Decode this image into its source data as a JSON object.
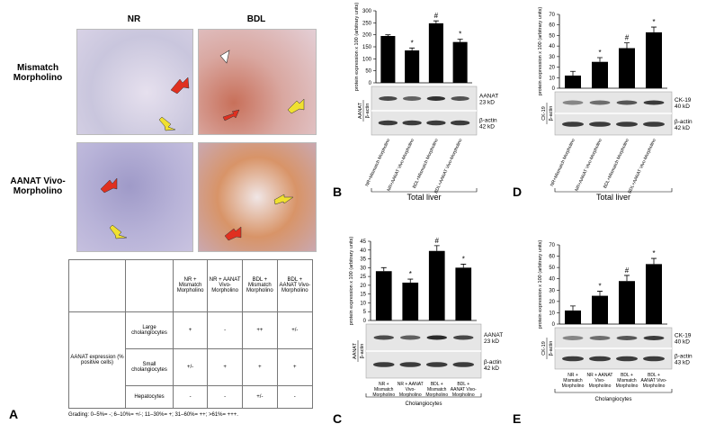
{
  "panel_a": {
    "letter": "A",
    "columns": [
      "NR",
      "BDL"
    ],
    "rows": [
      "Mismatch Morpholino",
      "AANAT Vivo-Morpholino"
    ]
  },
  "table": {
    "headers": [
      "NR + Mismatch Morpholino",
      "NR + AANAT Vivo-Morpholino",
      "BDL + Mismatch Morpholino",
      "BDL + AANAT Vivo-Morpholino"
    ],
    "row_group": "AANAT expression (% positive cells)",
    "rows": [
      [
        "Large cholangiocytes",
        "+",
        "-",
        "++",
        "+/-"
      ],
      [
        "Small cholangiocytes",
        "+/-",
        "+",
        "+",
        "+"
      ],
      [
        "Hepatocytes",
        "-",
        "-",
        "+/-",
        "-"
      ]
    ],
    "note": "Grading: 0–5%= -; 6–10%= +/-; 11–30%= +; 31–60%= ++; >61%= +++."
  },
  "chart_data": [
    {
      "type": "bar",
      "letter": "B",
      "y_label": "protein expression x 100 (arbitrary units)",
      "ratio_label": [
        "AANAT",
        "β-actin"
      ],
      "categories": [
        "NR+Mismatch Morpholino",
        "NR+AANAT Vivo-Morpholino",
        "BDL+Mismatch Morpholino",
        "BDL+AANAT Vivo-Morpholino"
      ],
      "values": [
        195,
        135,
        248,
        170
      ],
      "errors": [
        5,
        10,
        10,
        12
      ],
      "color": "#000000",
      "annotations": [
        {
          "index": 1,
          "text": "*"
        },
        {
          "index": 2,
          "text": "#"
        },
        {
          "index": 3,
          "text": "*"
        }
      ],
      "ylim": [
        0,
        300
      ],
      "yticks": [
        0,
        50,
        100,
        150,
        200,
        250,
        300
      ],
      "blot_labels": [
        {
          "name": "AANAT",
          "size": "23 kD"
        },
        {
          "name": "β-actin",
          "size": "42 kD"
        }
      ],
      "group": "Total liver"
    },
    {
      "type": "bar",
      "letter": "C",
      "y_label": "protein expression x 100 (arbitrary units)",
      "ratio_label": [
        "AANAT",
        "β-actin"
      ],
      "categories": [
        "NR + Mismatch Morpholino",
        "NR + AANAT Vivo-Morpholino",
        "BDL + Mismatch Morpholino",
        "BDL + AANAT Vivo-Morpholino"
      ],
      "values": [
        28,
        21.5,
        39.5,
        30
      ],
      "errors": [
        2,
        2,
        3,
        2
      ],
      "color": "#000000",
      "annotations": [
        {
          "index": 1,
          "text": "*"
        },
        {
          "index": 2,
          "text": "#"
        },
        {
          "index": 3,
          "text": "*"
        }
      ],
      "ylim": [
        0,
        45
      ],
      "yticks": [
        0,
        5,
        10,
        15,
        20,
        25,
        30,
        35,
        40,
        45
      ],
      "blot_labels": [
        {
          "name": "AANAT",
          "size": "23 kD"
        },
        {
          "name": "β-actin",
          "size": "42 kD"
        }
      ],
      "group": "Cholangiocytes"
    },
    {
      "type": "bar",
      "letter": "D",
      "y_label": "protein expression x 100 (arbitrary units)",
      "ratio_label": [
        "CK-19",
        "β-actin"
      ],
      "categories": [
        "NR+Mismatch Morpholino",
        "NR+AANAT Vivo-Morpholino",
        "BDL+Mismatch Morpholino",
        "BDL+AANAT Vivo-Morpholino"
      ],
      "values": [
        12,
        25,
        38,
        53
      ],
      "errors": [
        4,
        4,
        5,
        5
      ],
      "color": "#000000",
      "annotations": [
        {
          "index": 1,
          "text": "*"
        },
        {
          "index": 2,
          "text": "#"
        },
        {
          "index": 3,
          "text": "*"
        }
      ],
      "ylim": [
        0,
        70
      ],
      "yticks": [
        0,
        10,
        20,
        30,
        40,
        50,
        60,
        70
      ],
      "blot_labels": [
        {
          "name": "CK-19",
          "size": "40 kD"
        },
        {
          "name": "β-actin",
          "size": "42 kD"
        }
      ],
      "group": "Total liver"
    },
    {
      "type": "bar",
      "letter": "E",
      "y_label": "protein expression x 100 (arbitrary units)",
      "ratio_label": [
        "CK-19",
        "β-actin"
      ],
      "categories": [
        "NR + Mismatch Morpholino",
        "NR + AANAT Vivo-Morpholino",
        "BDL + Mismatch Morpholino",
        "BDL + AANAT Vivo-Morpholino"
      ],
      "values": [
        12,
        25,
        38,
        53
      ],
      "errors": [
        4,
        4,
        5,
        5
      ],
      "color": "#000000",
      "annotations": [
        {
          "index": 1,
          "text": "*"
        },
        {
          "index": 2,
          "text": "#"
        },
        {
          "index": 3,
          "text": "*"
        }
      ],
      "ylim": [
        0,
        70
      ],
      "yticks": [
        0,
        10,
        20,
        30,
        40,
        50,
        60,
        70
      ],
      "blot_labels": [
        {
          "name": "CK-19",
          "size": "40 kD"
        },
        {
          "name": "β-actin",
          "size": "43 kD"
        }
      ],
      "group": "Cholangiocytes"
    }
  ]
}
